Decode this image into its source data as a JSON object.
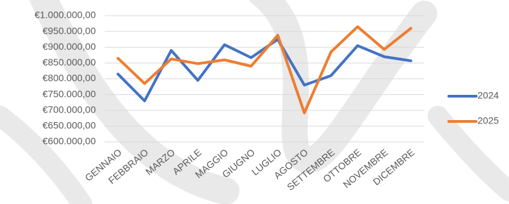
{
  "chart_data": {
    "type": "line",
    "categories": [
      "GENNAIO",
      "FEBBRAIO",
      "MARZO",
      "APRILE",
      "MAGGIO",
      "GIUGNO",
      "LUGLIO",
      "AGOSTO",
      "SETTEMBRE",
      "OTTOBRE",
      "NOVEMBRE",
      "DICEMBRE"
    ],
    "series": [
      {
        "name": "2024",
        "color": "#4472c4",
        "values": [
          815000,
          730000,
          890000,
          795000,
          908000,
          867000,
          925000,
          780000,
          810000,
          905000,
          870000,
          857000
        ]
      },
      {
        "name": "2025",
        "color": "#ed7d31",
        "values": [
          865000,
          785000,
          863000,
          848000,
          860000,
          840000,
          938000,
          692000,
          885000,
          965000,
          893000,
          960000
        ]
      }
    ],
    "ylim": [
      600000,
      1000000
    ],
    "yticks": [
      {
        "value": 600000,
        "label": "€600.000,00"
      },
      {
        "value": 650000,
        "label": "€650.000,00"
      },
      {
        "value": 700000,
        "label": "€700.000,00"
      },
      {
        "value": 750000,
        "label": "€750.000,00"
      },
      {
        "value": 800000,
        "label": "€800.000,00"
      },
      {
        "value": 850000,
        "label": "€850.000,00"
      },
      {
        "value": 900000,
        "label": "€900.000,00"
      },
      {
        "value": 950000,
        "label": "€950.000,00"
      },
      {
        "value": 1000000,
        "label": "€1.000.000,00"
      }
    ],
    "grid": true,
    "legend": "right"
  }
}
